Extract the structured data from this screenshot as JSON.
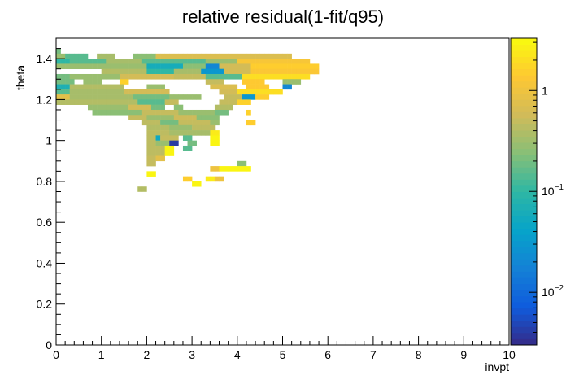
{
  "chart_data": {
    "type": "heatmap",
    "title": "relative residual(1-fit/q95)",
    "xlabel": "invpt",
    "ylabel": "theta",
    "xlim": [
      0,
      10
    ],
    "ylim": [
      0,
      1.5
    ],
    "x_ticks": [
      "0",
      "1",
      "2",
      "3",
      "4",
      "5",
      "6",
      "7",
      "8",
      "9",
      "10"
    ],
    "y_ticks": [
      "0",
      "0.2",
      "0.4",
      "0.6",
      "0.8",
      "1",
      "1.2",
      "1.4"
    ],
    "bin_width_x": 0.1,
    "bin_width_y": 0.025,
    "color_scale": "log",
    "zlim": [
      0.003,
      3.3
    ],
    "colorbar_tick_labels": [
      "10^-2",
      "10^-1",
      "1"
    ],
    "palette": [
      "#352a87",
      "#0f5cdd",
      "#1481d6",
      "#06a4ca",
      "#2eb7a4",
      "#87bf77",
      "#d1bb59",
      "#fec832",
      "#f9fb0e"
    ],
    "rows": [
      {
        "theta": 1.425,
        "runs": [
          [
            0.0,
            0.1,
            0.2
          ]
        ]
      },
      {
        "theta": 1.4,
        "runs": [
          [
            0.0,
            0.2,
            0.3
          ],
          [
            0.2,
            0.7,
            0.15
          ],
          [
            0.9,
            1.3,
            0.35
          ],
          [
            1.7,
            2.2,
            0.25
          ],
          [
            2.2,
            5.2,
            0.7
          ]
        ]
      },
      {
        "theta": 1.375,
        "runs": [
          [
            0.0,
            0.3,
            0.1
          ],
          [
            0.3,
            1.1,
            0.15
          ],
          [
            1.1,
            1.9,
            0.35
          ],
          [
            1.9,
            3.3,
            0.15
          ],
          [
            3.3,
            4.0,
            0.3
          ],
          [
            4.0,
            5.6,
            1.2
          ]
        ]
      },
      {
        "theta": 1.35,
        "runs": [
          [
            0.0,
            2.0,
            0.3
          ],
          [
            2.0,
            2.8,
            0.06
          ],
          [
            2.8,
            3.3,
            0.25
          ],
          [
            3.3,
            3.6,
            0.02
          ],
          [
            3.6,
            4.3,
            0.6
          ],
          [
            4.3,
            5.8,
            1.5
          ]
        ]
      },
      {
        "theta": 1.325,
        "runs": [
          [
            1.0,
            2.0,
            0.4
          ],
          [
            2.0,
            2.6,
            0.1
          ],
          [
            2.6,
            3.2,
            0.35
          ],
          [
            3.2,
            3.7,
            0.03
          ],
          [
            3.7,
            4.3,
            0.6
          ],
          [
            4.3,
            5.8,
            1.3
          ]
        ]
      },
      {
        "theta": 1.3,
        "runs": [
          [
            0.0,
            0.3,
            0.2
          ],
          [
            0.3,
            1.4,
            0.3
          ],
          [
            1.4,
            2.6,
            0.6
          ],
          [
            2.6,
            3.3,
            0.5
          ],
          [
            3.3,
            4.1,
            0.15
          ],
          [
            4.1,
            5.6,
            2.0
          ]
        ]
      },
      {
        "theta": 1.275,
        "runs": [
          [
            0.0,
            0.4,
            0.2
          ],
          [
            0.6,
            1.0,
            0.3
          ],
          [
            1.4,
            1.6,
            1.6
          ],
          [
            3.3,
            3.7,
            0.5
          ],
          [
            4.1,
            4.6,
            1.4
          ],
          [
            5.0,
            5.4,
            0.3
          ]
        ]
      },
      {
        "theta": 1.25,
        "runs": [
          [
            0.0,
            0.3,
            0.07
          ],
          [
            0.3,
            1.5,
            0.4
          ],
          [
            2.0,
            2.4,
            0.3
          ],
          [
            3.4,
            4.0,
            0.7
          ],
          [
            4.2,
            4.7,
            1.4
          ],
          [
            5.0,
            5.2,
            0.02
          ]
        ]
      },
      {
        "theta": 1.225,
        "runs": [
          [
            0.0,
            0.3,
            0.15
          ],
          [
            0.3,
            1.5,
            0.35
          ],
          [
            1.5,
            2.5,
            0.6
          ],
          [
            3.6,
            4.0,
            0.6
          ],
          [
            4.0,
            5.0,
            2.0
          ]
        ]
      },
      {
        "theta": 1.2,
        "runs": [
          [
            0.0,
            0.3,
            0.8
          ],
          [
            0.3,
            1.7,
            0.35
          ],
          [
            1.7,
            2.5,
            0.2
          ],
          [
            2.5,
            3.2,
            0.3
          ],
          [
            3.7,
            4.1,
            0.5
          ],
          [
            4.1,
            4.4,
            0.03
          ],
          [
            4.4,
            4.7,
            1.5
          ]
        ]
      },
      {
        "theta": 1.175,
        "runs": [
          [
            0.0,
            1.8,
            0.4
          ],
          [
            1.8,
            2.4,
            0.15
          ],
          [
            2.4,
            2.7,
            0.5
          ],
          [
            3.6,
            4.0,
            0.5
          ],
          [
            4.0,
            4.3,
            1.6
          ]
        ]
      },
      {
        "theta": 1.15,
        "runs": [
          [
            0.7,
            1.6,
            0.3
          ],
          [
            1.6,
            2.1,
            0.6
          ],
          [
            2.1,
            2.4,
            0.2
          ],
          [
            2.6,
            2.8,
            0.25
          ],
          [
            3.5,
            3.9,
            0.4
          ]
        ]
      },
      {
        "theta": 1.125,
        "runs": [
          [
            0.8,
            1.9,
            0.25
          ],
          [
            1.9,
            2.7,
            0.5
          ],
          [
            2.7,
            3.5,
            0.3
          ],
          [
            3.5,
            3.8,
            0.2
          ],
          [
            4.2,
            4.3,
            1.6
          ]
        ]
      },
      {
        "theta": 1.1,
        "runs": [
          [
            1.6,
            2.0,
            0.5
          ],
          [
            2.0,
            2.6,
            0.3
          ],
          [
            2.6,
            3.1,
            0.55
          ],
          [
            3.1,
            3.6,
            0.25
          ]
        ]
      },
      {
        "theta": 1.075,
        "runs": [
          [
            1.9,
            2.3,
            0.45
          ],
          [
            2.3,
            2.7,
            0.2
          ],
          [
            2.7,
            3.4,
            0.5
          ],
          [
            3.4,
            3.6,
            0.3
          ],
          [
            4.2,
            4.4,
            1.5
          ]
        ]
      },
      {
        "theta": 1.05,
        "runs": [
          [
            2.0,
            2.5,
            0.4
          ],
          [
            2.5,
            3.0,
            0.3
          ],
          [
            3.0,
            3.5,
            0.45
          ]
        ]
      },
      {
        "theta": 1.025,
        "runs": [
          [
            2.0,
            2.5,
            0.45
          ],
          [
            2.5,
            3.4,
            0.35
          ],
          [
            3.4,
            3.6,
            2.5
          ]
        ]
      },
      {
        "theta": 1.0,
        "runs": [
          [
            2.0,
            2.2,
            0.45
          ],
          [
            2.2,
            2.3,
            0.05
          ],
          [
            2.3,
            2.7,
            0.5
          ],
          [
            2.8,
            3.0,
            0.15
          ],
          [
            3.4,
            3.6,
            3.0
          ]
        ]
      },
      {
        "theta": 0.975,
        "runs": [
          [
            2.0,
            2.2,
            0.45
          ],
          [
            2.2,
            2.5,
            0.3
          ],
          [
            2.5,
            2.7,
            0.004
          ],
          [
            2.9,
            3.1,
            0.2
          ],
          [
            3.4,
            3.6,
            3.0
          ]
        ]
      },
      {
        "theta": 0.95,
        "runs": [
          [
            2.0,
            2.2,
            0.45
          ],
          [
            2.2,
            2.4,
            0.45
          ],
          [
            2.4,
            2.6,
            3.0
          ],
          [
            2.8,
            3.0,
            0.15
          ]
        ]
      },
      {
        "theta": 0.925,
        "runs": [
          [
            2.0,
            2.2,
            0.45
          ],
          [
            2.2,
            2.4,
            0.45
          ],
          [
            2.4,
            2.6,
            3.0
          ]
        ]
      },
      {
        "theta": 0.9,
        "runs": [
          [
            2.0,
            2.2,
            0.5
          ],
          [
            2.2,
            2.4,
            0.8
          ]
        ]
      },
      {
        "theta": 0.875,
        "runs": [
          [
            2.0,
            2.2,
            0.5
          ],
          [
            4.0,
            4.2,
            0.25
          ]
        ]
      },
      {
        "theta": 0.85,
        "runs": [
          [
            3.4,
            3.6,
            1.0
          ],
          [
            3.6,
            4.3,
            3.0
          ]
        ]
      },
      {
        "theta": 0.825,
        "runs": [
          [
            2.0,
            2.2,
            3.0
          ]
        ]
      },
      {
        "theta": 0.8,
        "runs": [
          [
            2.8,
            3.0,
            1.5
          ],
          [
            3.3,
            3.5,
            2.5
          ],
          [
            3.5,
            3.7,
            1.0
          ]
        ]
      },
      {
        "theta": 0.775,
        "runs": [
          [
            3.0,
            3.2,
            3.0
          ]
        ]
      },
      {
        "theta": 0.75,
        "runs": [
          [
            1.8,
            2.0,
            0.4
          ]
        ]
      }
    ]
  }
}
